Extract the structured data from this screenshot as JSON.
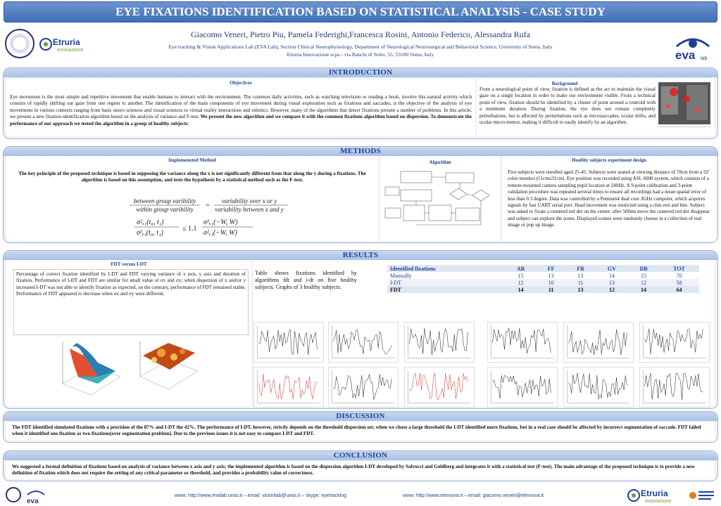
{
  "title": "EYE FIXATIONS IDENTIFICATION BASED ON STATISTICAL ANALYSIS - CASE STUDY",
  "authors": "Giacomo Veneri, Pietro Piu, Pamela Federighi,Francesca Rosini, Antonio Federico, Alessandra Rufa",
  "affiliation1": "Eye tracking & Vision Applications Lab (EVA Lab), Section Clinical Neurophysiology, Department of Neurological Neurosurgical and Behavioral Science, University of Siena, Italy",
  "affiliation2": "Etruria Innovazione scpa - via Banchi di Sotto, 55, 53100 Siena, Italy",
  "logos": {
    "etruria": "Etruria",
    "etruria_sub": "innovazione",
    "eva": "eva",
    "eva_sub": "lab"
  },
  "introduction": {
    "title": "INTRODUCTION",
    "objectives_title": "Objectives",
    "objectives_text": "Eye movement is the most simple and repetitive movement that enable humans to interact with the environment. The common daily activities, such as watching television or reading a book, involve this natural activity which consists of rapidly shifting our gaze from one region to another. The identification of the main components of eye movement during visual exploration such as fixations and saccades, is the objective of the analysis of eye movements in various contexts ranging from basic neuro sciences and visual sciences to virtual reality interactions and robotics. However, many of the algorithms that detect fixations present a number of problems. In this article, we present a new fixation identification algorithm based on the analysis of variance and F-test.",
    "objectives_bold": "We present the new algorithm and we compare it with the common fixations algorithm based on dispersion. To demonstrate the performance of our approach we tested the algorithm in a group of healthy subjects",
    "background_title": "Background",
    "background_text": "From a neurological point of view, fixation is defined as the act to maintain the visual gaze on a single location in order to make our environment visible. From a technical point of view, fixation should be identified by a cluster of point around a centroid with a minimum duration. During fixation, the eye does not remain completely perturbations, but is affected by perturbations such as microsaccades, ocular drifts, and ocular micro-tremor, making it difficult to easily identify by an algorithm."
  },
  "methods": {
    "title": "METHODS",
    "implemented_title": "Implemeneted Method",
    "implemented_text": "The key principle of the proposed technique is based in supposing the variance along the x is not significantly different from that along the y during a fixations. The algorithm is based on this assumption, and tests the hypothesis by a statistical method such as the F-test.",
    "formula1_num": "between group varibility",
    "formula1_den": "within group varibility",
    "formula1_rnum": "variability over x or y",
    "formula1_rden": "variability between x and y",
    "algorithm_title": "Algorithm",
    "healthy_title": "Healthy subjects experiment design",
    "healthy_text": "Five subjects were enrolled aged 25-45. Subjects were seated at viewing distance of 78cm from a 32' color monitor (51cmx31cm). Eye position was recorded using ASL 6000 system, which consists of a remote-mounted camera sampling pupil location at 240Hz. A 9-point calibration and 3-point validation procedure was repeated several times to ensure all recordings had a mean spatial error of less than 0.3 degree. Data was controlled by a Pentium4 dual core 3GHz computer, which acquires signals by fast UART serial port. Head movement was restricted using a chin rest and bite. Subject was asked to fixate a centered red dot on the center; after 500ms move the centered red dot disappear and subject can explore the scene. Displayed scenes were randomly choose in a collection of real image or pop up image."
  },
  "results": {
    "title": "RESULTS",
    "fdt_title": "FDT versus I-DT",
    "fdt_text": "Percentage of correct fixation identified by I-DT and FDT varying variance of x axis, y axis and duration of fixation. Performance of I-DT and FDT are similar for small value of σx and σy; when dispersion of x and/or y increased I-DT was not able to identify fixation as expected, on the contrary, performance of FDT remained stable. Performance of FDT appeared to decrease when σx and σy were different.",
    "table_text": "Table shows fixations identified by algorithms fdt and i-dt on five healthy subjects. Graphs of 3 healthy subjects.",
    "table_header": [
      "Identified fixations",
      "AR",
      "FF",
      "FR",
      "GV",
      "DB",
      "TOT"
    ],
    "table_rows": [
      [
        "Manually",
        "15",
        "13",
        "13",
        "14",
        "15",
        "70"
      ],
      [
        "I-DT",
        "12",
        "10",
        "11",
        "13",
        "12",
        "58"
      ],
      [
        "FDT",
        "14",
        "11",
        "13",
        "12",
        "14",
        "64"
      ]
    ]
  },
  "discussion": {
    "title": "DISCUSSION",
    "text": "The FDT identified simulated fixations with a precision of the 87% and I-DT the 42%. The performance of I-DT, however, strictly depends on the threshold dispersion set; when we chose a large threshold the I-DT identified more fixations, but in a real case should be affected by incorrect segmentation of saccade. FDT failed when it identified one fixation as two fixations(over segmentation problem). Due to the previous issues it is not easy to compare I-DT and FDT."
  },
  "conclusion": {
    "title": "CONCLUSION",
    "text": "We suggested a formal definition of fixations based on analysis of variance between x axis and y axis; the implemented algorithm is based on the dispersion algorithm I-DT developed by Salvucci and Goldberg and integrates it with a statistical test (F-test). The main advantage of the proposed technique is to provide a new definition of fixation which does not require the setting of any critical parameter or threshold, and provides a probability value of correctness."
  },
  "footer": {
    "left": "www: http://www.evalab.unisi.it – email: visionlab@unisi.it – skype: eyetracking",
    "right": "www: http://www.etinnova.it – email: giacomo.veneri@etinnova.it"
  },
  "colors": {
    "accent": "#1e3f96",
    "banner": "#4f7cc2",
    "panel_bg": "#eef2f8"
  }
}
